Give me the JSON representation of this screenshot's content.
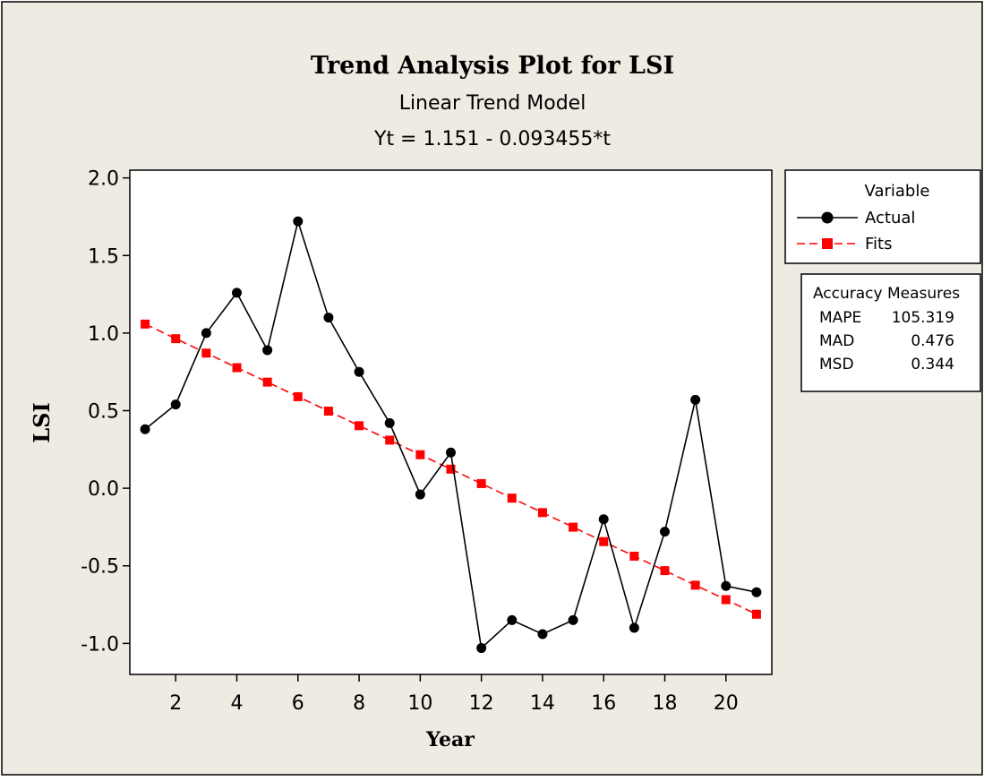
{
  "chart_data": {
    "type": "line",
    "title": "Trend Analysis Plot for LSI",
    "subtitle": "Linear Trend Model",
    "equation": "Yt = 1.151 - 0.093455*t",
    "xlabel": "Year",
    "ylabel": "LSI",
    "xlim": [
      0.5,
      21.5
    ],
    "ylim": [
      -1.2,
      2.05
    ],
    "xticks": [
      2,
      4,
      6,
      8,
      10,
      12,
      14,
      16,
      18,
      20
    ],
    "yticks": [
      -1.0,
      -0.5,
      0.0,
      0.5,
      1.0,
      1.5,
      2.0
    ],
    "ytick_labels": [
      "-1.0",
      "-0.5",
      "0.0",
      "0.5",
      "1.0",
      "1.5",
      "2.0"
    ],
    "x": [
      1,
      2,
      3,
      4,
      5,
      6,
      7,
      8,
      9,
      10,
      11,
      12,
      13,
      14,
      15,
      16,
      17,
      18,
      19,
      20,
      21
    ],
    "series": [
      {
        "name": "Actual",
        "color": "#000000",
        "marker": "circle",
        "line": "solid",
        "values": [
          0.38,
          0.54,
          1.0,
          1.26,
          0.89,
          1.72,
          1.1,
          0.75,
          0.42,
          -0.04,
          0.23,
          -1.03,
          -0.85,
          -0.94,
          -0.85,
          -0.2,
          -0.9,
          -0.28,
          0.57,
          -0.63,
          -0.67
        ]
      },
      {
        "name": "Fits",
        "color": "#ff0000",
        "marker": "square",
        "line": "dashed",
        "values": [
          1.058,
          0.964,
          0.871,
          0.777,
          0.684,
          0.59,
          0.497,
          0.403,
          0.31,
          0.216,
          0.123,
          0.03,
          -0.064,
          -0.157,
          -0.251,
          -0.344,
          -0.438,
          -0.531,
          -0.625,
          -0.718,
          -0.812
        ]
      }
    ],
    "legend": {
      "title": "Variable",
      "placement": "right"
    },
    "accuracy": {
      "title": "Accuracy Measures",
      "rows": [
        {
          "label": "MAPE",
          "value": "105.319"
        },
        {
          "label": "MAD",
          "value": "0.476"
        },
        {
          "label": "MSD",
          "value": "0.344"
        }
      ]
    },
    "grid": false,
    "background": "#efebe2",
    "plot_background": "#ffffff"
  }
}
